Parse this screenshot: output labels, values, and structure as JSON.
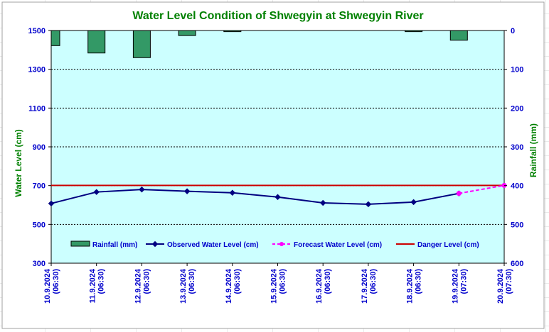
{
  "chart_data": {
    "type": "bar+line",
    "title": "Water Level Condition of Shwegyin at Shwegyin River",
    "ylabel_left": "Water Level (cm)",
    "ylabel_right": "Rainfall (mm)",
    "ylim_left": [
      300,
      1500
    ],
    "yticks_left": [
      "300",
      "500",
      "700",
      "900",
      "1100",
      "1300",
      "1500"
    ],
    "ylim_right": [
      0,
      600
    ],
    "yticks_right": [
      "0",
      "100",
      "200",
      "300",
      "400",
      "500",
      "600"
    ],
    "right_axis_inverted": true,
    "categories": [
      [
        "10.9.2024",
        "(06:30)"
      ],
      [
        "11.9.2024",
        "(06:30)"
      ],
      [
        "12.9.2024",
        "(06:30)"
      ],
      [
        "13.9.2024",
        "(06:30)"
      ],
      [
        "14.9.2024",
        "(06:30)"
      ],
      [
        "15.9.2024",
        "(06:30)"
      ],
      [
        "16.9.2024",
        "(06:30)"
      ],
      [
        "17.9.2024",
        "(06:30)"
      ],
      [
        "18.9.2024",
        "(06:30)"
      ],
      [
        "19.9.2024",
        "(07:30)"
      ],
      [
        "20.9.2024",
        "(07:30)"
      ]
    ],
    "series": [
      {
        "name": "Rainfall (mm)",
        "kind": "bar",
        "axis": "right",
        "color": "#339966",
        "values": [
          39,
          58,
          70,
          13,
          3,
          null,
          null,
          null,
          3,
          25,
          null
        ]
      },
      {
        "name": "Observed Water Level (cm)",
        "kind": "line",
        "axis": "left",
        "color": "#000080",
        "values": [
          608,
          667,
          680,
          671,
          663,
          641,
          611,
          604,
          615,
          660,
          null
        ]
      },
      {
        "name": "Forecast Water Level (cm)",
        "kind": "dashed-line",
        "axis": "left",
        "color": "#ff00ff",
        "values": [
          null,
          null,
          null,
          null,
          null,
          null,
          null,
          null,
          null,
          660,
          701
        ]
      },
      {
        "name": "Danger Level (cm)",
        "kind": "line",
        "axis": "left",
        "color": "#cc0000",
        "values": [
          701,
          701,
          701,
          701,
          701,
          701,
          701,
          701,
          701,
          701,
          701
        ]
      }
    ],
    "legend_position": "bottom-inside",
    "grid": "horizontal",
    "colors": {
      "title": "#008000",
      "axis_text": "#0000cc",
      "axis_title": "#008000",
      "plot_bg": "#ccffff"
    }
  }
}
